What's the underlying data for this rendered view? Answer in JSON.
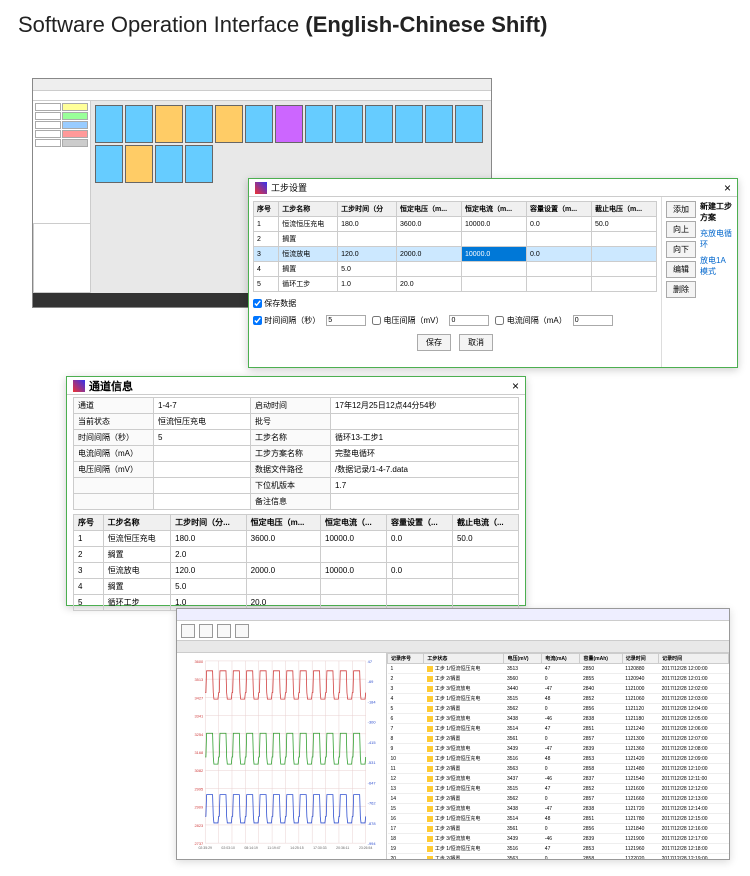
{
  "page": {
    "title": "Software Operation Interface",
    "subtitle": "(English-Chinese Shift)"
  },
  "win1": {
    "channel_colors": [
      "#66ccff",
      "#66ccff",
      "#ffcc66",
      "#66ccff",
      "#ffcc66",
      "#66ccff",
      "#cc66ff",
      "#66ccff",
      "#66ccff",
      "#66ccff",
      "#66ccff",
      "#66ccff",
      "#66ccff",
      "#66ccff",
      "#ffcc66",
      "#66ccff",
      "#66ccff"
    ],
    "sidebar_colors": [
      "#ffff99",
      "#99ff99",
      "#99ccff",
      "#ff9999",
      "#cccccc"
    ]
  },
  "win2": {
    "title": "工步设置",
    "headers": [
      "序号",
      "工步名称",
      "工步时间（分",
      "恒定电压（m...",
      "恒定电流（m...",
      "容量设置（m...",
      "截止电压（m..."
    ],
    "rows": [
      [
        "1",
        "恒流恒压充电",
        "180.0",
        "3600.0",
        "10000.0",
        "0.0",
        "50.0"
      ],
      [
        "2",
        "搁置",
        "",
        "",
        "",
        "",
        ""
      ],
      [
        "3",
        "恒流放电",
        "120.0",
        "2000.0",
        "10000.0",
        "0.0",
        ""
      ],
      [
        "4",
        "搁置",
        "5.0",
        "",
        "",
        "",
        ""
      ],
      [
        "5",
        "循环工步",
        "1.0",
        "20.0",
        "",
        "",
        ""
      ]
    ],
    "selected_row": 2,
    "selected_cell_col": 4,
    "side_buttons": [
      "添加",
      "向上",
      "向下",
      "编辑",
      "删除"
    ],
    "plan_links": [
      "新建工步方案",
      "充放电循环",
      "放电1A模式"
    ],
    "save_data_label": "保存数据",
    "time_interval_label": "时间间隔（秒）",
    "time_interval_value": "5",
    "voltage_interval_label": "电压间隔（mV）",
    "voltage_interval_value": "0",
    "current_interval_label": "电流间隔（mA）",
    "current_interval_value": "0",
    "save_btn": "保存",
    "cancel_btn": "取消"
  },
  "win3": {
    "title": "通道信息",
    "info": [
      [
        "通道",
        "1-4-7",
        "启动时间",
        "17年12月25日12点44分54秒"
      ],
      [
        "当前状态",
        "恒流恒压充电",
        "批号",
        ""
      ],
      [
        "时间间隔（秒）",
        "5",
        "工步名称",
        "循环13-工步1"
      ],
      [
        "电流间隔（mA）",
        "",
        "工步方案名称",
        "完整电循环"
      ],
      [
        "电压间隔（mV）",
        "",
        "数据文件路径",
        "/数据记录/1-4-7.data"
      ],
      [
        "",
        "",
        "下位机版本",
        "1.7"
      ],
      [
        "",
        "",
        "备注信息",
        ""
      ]
    ],
    "step_headers": [
      "序号",
      "工步名称",
      "工步时间（分...",
      "恒定电压（m...",
      "恒定电流（...",
      "容量设置（...",
      "截止电流（..."
    ],
    "step_rows": [
      [
        "1",
        "恒流恒压充电",
        "180.0",
        "3600.0",
        "10000.0",
        "0.0",
        "50.0"
      ],
      [
        "2",
        "搁置",
        "2.0",
        "",
        "",
        "",
        ""
      ],
      [
        "3",
        "恒流放电",
        "120.0",
        "2000.0",
        "10000.0",
        "0.0",
        ""
      ],
      [
        "4",
        "搁置",
        "5.0",
        "",
        "",
        "",
        ""
      ],
      [
        "5",
        "循环工步",
        "1.0",
        "20.0",
        "",
        "",
        ""
      ]
    ]
  },
  "win4": {
    "data_headers": [
      "记录序号",
      "工步状态",
      "电压(mV)",
      "电流(mA)",
      "容量(mAh)",
      "记录时间",
      "记录时间"
    ],
    "data_rows": [
      [
        "1",
        "工步 1/恒流恒压充电",
        "3513",
        "47",
        "2850",
        "1120880",
        "2017/12/28 12:00:00"
      ],
      [
        "2",
        "工步 2/搁置",
        "3560",
        "0",
        "2855",
        "1120940",
        "2017/12/28 12:01:00"
      ],
      [
        "3",
        "工步 3/恒流放电",
        "3440",
        "-47",
        "2840",
        "1121000",
        "2017/12/28 12:02:00"
      ],
      [
        "4",
        "工步 1/恒流恒压充电",
        "3515",
        "48",
        "2852",
        "1121060",
        "2017/12/28 12:03:00"
      ],
      [
        "5",
        "工步 2/搁置",
        "3562",
        "0",
        "2856",
        "1121120",
        "2017/12/28 12:04:00"
      ],
      [
        "6",
        "工步 3/恒流放电",
        "3438",
        "-46",
        "2838",
        "1121180",
        "2017/12/28 12:05:00"
      ],
      [
        "7",
        "工步 1/恒流恒压充电",
        "3514",
        "47",
        "2851",
        "1121240",
        "2017/12/28 12:06:00"
      ],
      [
        "8",
        "工步 2/搁置",
        "3561",
        "0",
        "2857",
        "1121300",
        "2017/12/28 12:07:00"
      ],
      [
        "9",
        "工步 3/恒流放电",
        "3439",
        "-47",
        "2839",
        "1121360",
        "2017/12/28 12:08:00"
      ],
      [
        "10",
        "工步 1/恒流恒压充电",
        "3516",
        "48",
        "2853",
        "1121420",
        "2017/12/28 12:09:00"
      ],
      [
        "11",
        "工步 2/搁置",
        "3563",
        "0",
        "2858",
        "1121480",
        "2017/12/28 12:10:00"
      ],
      [
        "12",
        "工步 3/恒流放电",
        "3437",
        "-46",
        "2837",
        "1121540",
        "2017/12/28 12:11:00"
      ],
      [
        "13",
        "工步 1/恒流恒压充电",
        "3515",
        "47",
        "2852",
        "1121600",
        "2017/12/28 12:12:00"
      ],
      [
        "14",
        "工步 2/搁置",
        "3562",
        "0",
        "2857",
        "1121660",
        "2017/12/28 12:13:00"
      ],
      [
        "15",
        "工步 3/恒流放电",
        "3438",
        "-47",
        "2838",
        "1121720",
        "2017/12/28 12:14:00"
      ],
      [
        "16",
        "工步 1/恒流恒压充电",
        "3514",
        "48",
        "2851",
        "1121780",
        "2017/12/28 12:15:00"
      ],
      [
        "17",
        "工步 2/搁置",
        "3561",
        "0",
        "2856",
        "1121840",
        "2017/12/28 12:16:00"
      ],
      [
        "18",
        "工步 3/恒流放电",
        "3439",
        "-46",
        "2839",
        "1121900",
        "2017/12/28 12:17:00"
      ],
      [
        "19",
        "工步 1/恒流恒压充电",
        "3516",
        "47",
        "2853",
        "1121960",
        "2017/12/28 12:18:00"
      ],
      [
        "20",
        "工步 2/搁置",
        "3563",
        "0",
        "2858",
        "1122020",
        "2017/12/28 12:19:00"
      ],
      [
        "21",
        "工步 3/恒流放电",
        "3437",
        "-47",
        "2837",
        "1122080",
        "2017/12/28 12:20:00"
      ],
      [
        "22",
        "工步 1/恒流恒压充电",
        "3515",
        "48",
        "2852",
        "1122140",
        "2017/12/28 12:21:00"
      ],
      [
        "23",
        "工步 2/搁置",
        "3562",
        "0",
        "2857",
        "1122200",
        "2017/12/28 12:22:00"
      ]
    ],
    "chart": {
      "series_colors": [
        "#d04040",
        "#30a030",
        "#3050d0"
      ],
      "y_labels_left": [
        "3600",
        "3513",
        "3427",
        "3341",
        "3254",
        "3168",
        "3082",
        "2995",
        "2909",
        "2823",
        "2737"
      ],
      "y_labels_right": [
        "47",
        "-69",
        "-184",
        "-300",
        "-415",
        "-531",
        "-647",
        "-762",
        "-878",
        "-994"
      ],
      "x_labels": [
        "02:35:29",
        "02:03:10",
        "08:14:19",
        "11:19:47",
        "14:25:15",
        "17:30:33",
        "20:36:11",
        "23:26:54"
      ],
      "axis_label_1": "电压(mV)",
      "axis_label_2": "电流(mA)",
      "grid_color": "#e8d0d0",
      "background": "#ffffff"
    }
  }
}
